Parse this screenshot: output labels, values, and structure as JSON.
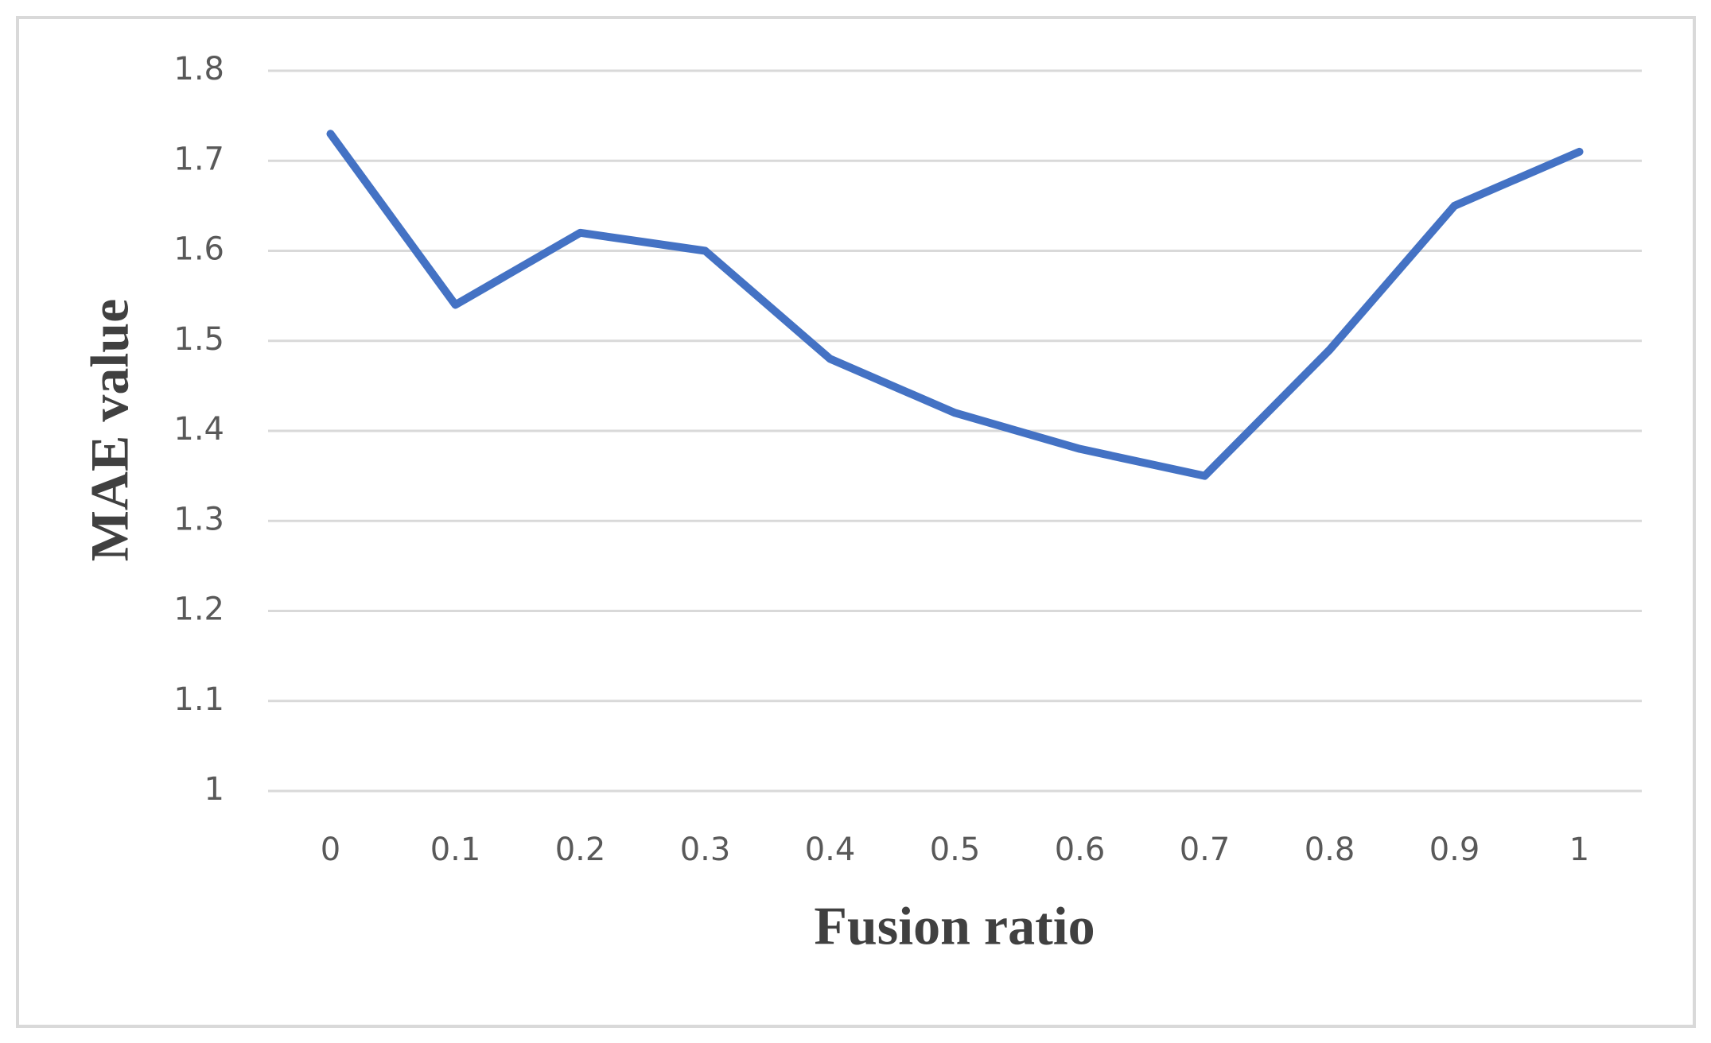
{
  "chart_data": {
    "type": "line",
    "x_label": "Fusion ratio",
    "y_label": "MAE value",
    "categories": [
      "0",
      "0.1",
      "0.2",
      "0.3",
      "0.4",
      "0.5",
      "0.6",
      "0.7",
      "0.8",
      "0.9",
      "1"
    ],
    "series": [
      {
        "name": "MAE value",
        "color": "#4472c4",
        "values": [
          1.73,
          1.54,
          1.62,
          1.6,
          1.48,
          1.42,
          1.38,
          1.35,
          1.49,
          1.65,
          1.71
        ]
      }
    ],
    "ylim": [
      1,
      1.8
    ],
    "yticks": [
      1,
      1.1,
      1.2,
      1.3,
      1.4,
      1.5,
      1.6,
      1.7,
      1.8
    ],
    "grid": true
  }
}
